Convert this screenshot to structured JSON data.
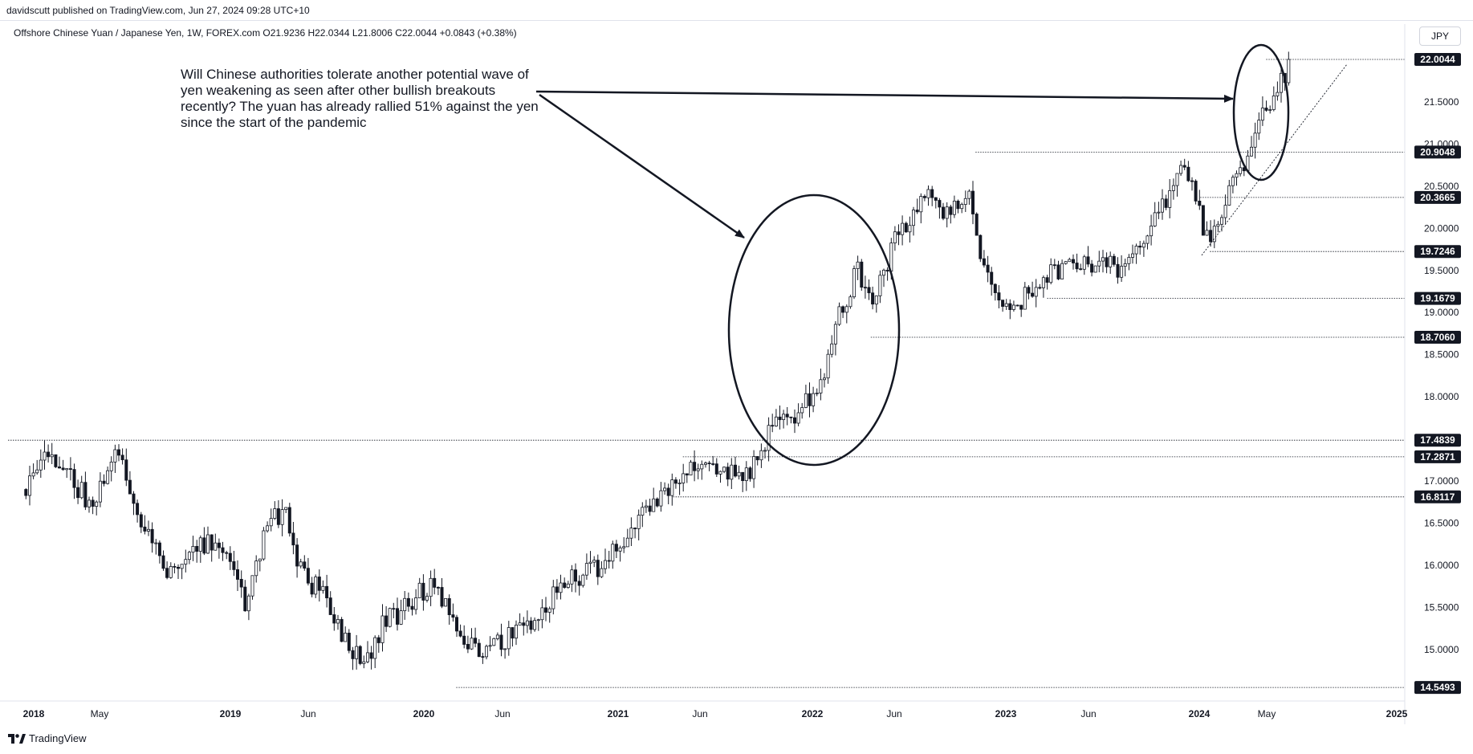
{
  "header": {
    "publisher": "davidscutt published on TradingView.com, Jun 27, 2024 09:28 UTC+10",
    "symbol_line": "Offshore Chinese Yuan / Japanese Yen, 1W, FOREX.com  O21.9236  H22.0344  L21.8006  C22.0044  +0.0843 (+0.38%)",
    "currency": "JPY"
  },
  "annotation": "Will Chinese authorities tolerate another potential wave of yen weakening as seen after other bullish breakouts recently? The yuan has already rallied 51% against the yen since the start of the pandemic",
  "footer": {
    "brand": "TradingView"
  },
  "colors": {
    "up": "#131722",
    "down": "#131722",
    "up_fill": "#ffffff",
    "down_fill": "#131722"
  },
  "chart_data": {
    "type": "candlestick",
    "interval": "1W",
    "xlabels": [
      "2018",
      "May",
      "2019",
      "Jun",
      "2020",
      "Jun",
      "2021",
      "Jun",
      "2022",
      "Jun",
      "2023",
      "Jun",
      "2024",
      "May",
      "2025"
    ],
    "xlabels_bold": [
      "2018",
      "2019",
      "2020",
      "2021",
      "2022",
      "2023",
      "2024",
      "2025"
    ],
    "y_ticks": [
      15.0,
      15.5,
      16.0,
      16.5,
      17.0,
      17.5,
      18.0,
      18.5,
      19.0,
      19.5,
      20.0,
      20.5,
      21.0,
      21.5
    ],
    "ylim": [
      14.4,
      22.4
    ],
    "price_levels": [
      "22.0044",
      "20.9048",
      "20.3665",
      "19.7246",
      "19.1679",
      "18.7060",
      "17.4839",
      "17.2871",
      "16.8117",
      "14.5493"
    ],
    "anchors": [
      [
        2017.96,
        16.9
      ],
      [
        2018.08,
        17.35
      ],
      [
        2018.2,
        17.0
      ],
      [
        2018.3,
        16.7
      ],
      [
        2018.42,
        17.45
      ],
      [
        2018.55,
        16.5
      ],
      [
        2018.68,
        15.95
      ],
      [
        2018.85,
        16.3
      ],
      [
        2019.0,
        16.1
      ],
      [
        2019.1,
        15.5
      ],
      [
        2019.2,
        16.5
      ],
      [
        2019.3,
        16.6
      ],
      [
        2019.38,
        15.9
      ],
      [
        2019.5,
        15.65
      ],
      [
        2019.6,
        15.15
      ],
      [
        2019.7,
        14.8
      ],
      [
        2019.8,
        15.3
      ],
      [
        2019.92,
        15.5
      ],
      [
        2020.05,
        15.8
      ],
      [
        2020.18,
        15.3
      ],
      [
        2020.28,
        14.95
      ],
      [
        2020.45,
        15.15
      ],
      [
        2020.6,
        15.4
      ],
      [
        2020.75,
        15.8
      ],
      [
        2020.9,
        15.95
      ],
      [
        2021.05,
        16.3
      ],
      [
        2021.18,
        16.7
      ],
      [
        2021.3,
        17.0
      ],
      [
        2021.42,
        17.25
      ],
      [
        2021.55,
        17.1
      ],
      [
        2021.7,
        17.1
      ],
      [
        2021.8,
        17.6
      ],
      [
        2021.92,
        17.8
      ],
      [
        2022.05,
        18.05
      ],
      [
        2022.15,
        18.9
      ],
      [
        2022.25,
        19.5
      ],
      [
        2022.33,
        19.05
      ],
      [
        2022.45,
        19.9
      ],
      [
        2022.6,
        20.4
      ],
      [
        2022.72,
        20.2
      ],
      [
        2022.82,
        20.45
      ],
      [
        2022.9,
        19.6
      ],
      [
        2023.0,
        18.95
      ],
      [
        2023.12,
        19.2
      ],
      [
        2023.25,
        19.5
      ],
      [
        2023.4,
        19.55
      ],
      [
        2023.5,
        19.6
      ],
      [
        2023.62,
        19.5
      ],
      [
        2023.75,
        19.95
      ],
      [
        2023.85,
        20.4
      ],
      [
        2023.95,
        20.75
      ],
      [
        2024.05,
        19.85
      ],
      [
        2024.15,
        20.3
      ],
      [
        2024.25,
        20.8
      ],
      [
        2024.33,
        21.35
      ],
      [
        2024.42,
        21.65
      ],
      [
        2024.49,
        22.0
      ]
    ]
  }
}
